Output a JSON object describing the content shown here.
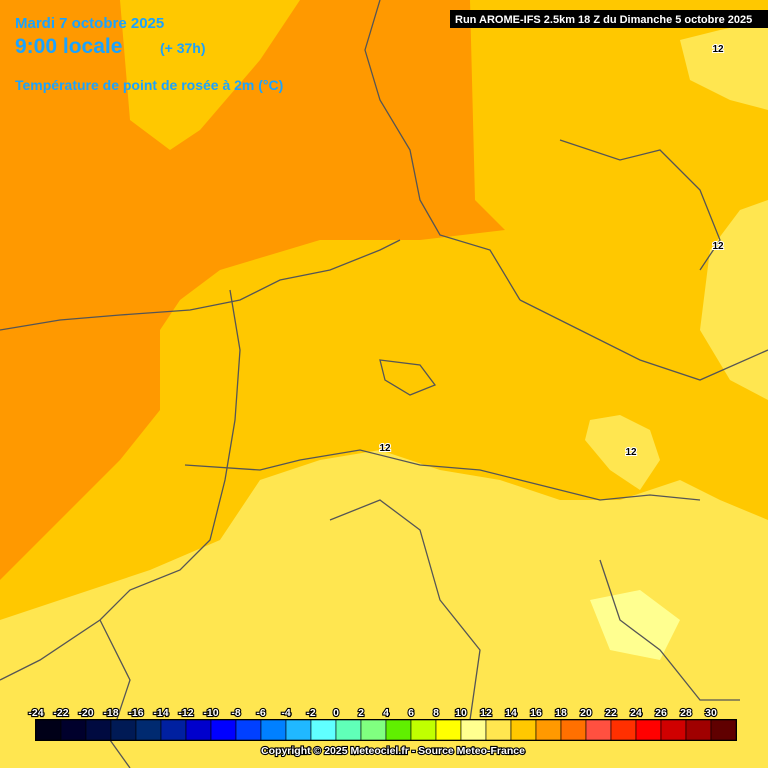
{
  "header": {
    "date": "Mardi 7 octobre 2025",
    "time": "9:00 locale",
    "lead": "(+ 37h)",
    "parameter": "Température de point de rosée à 2m (°C)"
  },
  "run": "Run AROME-IFS 2.5km 18 Z du Dimanche 5 octobre 2025",
  "contour_labels": [
    "12",
    "12",
    "12",
    "12"
  ],
  "colorbar": {
    "labels": [
      -24,
      -22,
      -20,
      -18,
      -16,
      -14,
      -12,
      -10,
      -8,
      -6,
      -4,
      -2,
      0,
      2,
      4,
      6,
      8,
      10,
      12,
      14,
      16,
      18,
      20,
      22,
      24,
      26,
      28,
      30
    ],
    "colors": [
      "#000018",
      "#00002c",
      "#000a40",
      "#001a55",
      "#002a70",
      "#0020a0",
      "#0000cc",
      "#0000ff",
      "#0040ff",
      "#0080ff",
      "#20b8ff",
      "#60ffff",
      "#60ffb8",
      "#80ff80",
      "#60f000",
      "#c0ff00",
      "#ffff00",
      "#ffff90",
      "#ffe650",
      "#ffc800",
      "#ff9900",
      "#ff7000",
      "#ff5040",
      "#ff3000",
      "#ff0000",
      "#d00000",
      "#a00000",
      "#600000"
    ]
  },
  "copyright": "Copyright © 2025 Meteociel.fr - Source Meteo-France"
}
